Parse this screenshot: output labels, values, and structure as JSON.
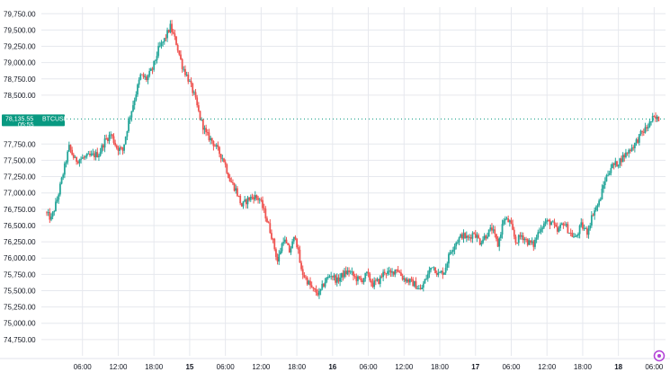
{
  "chart_data": {
    "type": "candlestick",
    "symbol": "BTCUSD",
    "last_price": "78,135.55",
    "countdown": "05:55",
    "colors": {
      "up": "#26a69a",
      "down": "#ef5350",
      "last_price": "#089981",
      "grid": "#e6e8ee"
    },
    "ylim": [
      74500,
      79850
    ],
    "y_ticks": [
      "79,750.00",
      "79,500.00",
      "79,250.00",
      "79,000.00",
      "78,750.00",
      "78,500.00",
      "77,750.00",
      "77,500.00",
      "77,250.00",
      "77,000.00",
      "76,750.00",
      "76,500.00",
      "76,250.00",
      "76,000.00",
      "75,750.00",
      "75,500.00",
      "75,250.00",
      "75,000.00",
      "74,750.00"
    ],
    "x_ticks": [
      {
        "label": "06:00",
        "bold": false
      },
      {
        "label": "12:00",
        "bold": false
      },
      {
        "label": "18:00",
        "bold": false
      },
      {
        "label": "15",
        "bold": true
      },
      {
        "label": "06:00",
        "bold": false
      },
      {
        "label": "12:00",
        "bold": false
      },
      {
        "label": "18:00",
        "bold": false
      },
      {
        "label": "16",
        "bold": true
      },
      {
        "label": "06:00",
        "bold": false
      },
      {
        "label": "12:00",
        "bold": false
      },
      {
        "label": "18:00",
        "bold": false
      },
      {
        "label": "17",
        "bold": true
      },
      {
        "label": "06:00",
        "bold": false
      },
      {
        "label": "12:00",
        "bold": false
      },
      {
        "label": "18:00",
        "bold": false
      },
      {
        "label": "18",
        "bold": true
      },
      {
        "label": "06:00",
        "bold": false
      }
    ],
    "x_start_hour": 0,
    "x_end_hour": 103,
    "price_path": [
      [
        0,
        76700
      ],
      [
        1,
        76600
      ],
      [
        2,
        76900
      ],
      [
        3,
        77300
      ],
      [
        4,
        77700
      ],
      [
        5,
        77500
      ],
      [
        7,
        77550
      ],
      [
        9,
        77600
      ],
      [
        10,
        77800
      ],
      [
        11,
        77900
      ],
      [
        12,
        77700
      ],
      [
        13,
        77650
      ],
      [
        14,
        78100
      ],
      [
        15,
        78450
      ],
      [
        16,
        78800
      ],
      [
        17,
        78750
      ],
      [
        18,
        78900
      ],
      [
        19,
        79200
      ],
      [
        20,
        79350
      ],
      [
        21,
        79550
      ],
      [
        22,
        79300
      ],
      [
        23,
        78950
      ],
      [
        24,
        78750
      ],
      [
        25,
        78500
      ],
      [
        26,
        78150
      ],
      [
        27,
        77900
      ],
      [
        28,
        77800
      ],
      [
        29,
        77650
      ],
      [
        30,
        77500
      ],
      [
        31,
        77200
      ],
      [
        32,
        77050
      ],
      [
        33,
        76800
      ],
      [
        34,
        76900
      ],
      [
        35,
        76950
      ],
      [
        36,
        76900
      ],
      [
        37,
        76650
      ],
      [
        38,
        76350
      ],
      [
        39,
        75950
      ],
      [
        40,
        76300
      ],
      [
        41,
        76100
      ],
      [
        42,
        76350
      ],
      [
        43,
        75800
      ],
      [
        44,
        75650
      ],
      [
        45,
        75500
      ],
      [
        46,
        75450
      ],
      [
        47,
        75650
      ],
      [
        48,
        75750
      ],
      [
        49,
        75650
      ],
      [
        50,
        75750
      ],
      [
        51,
        75800
      ],
      [
        52,
        75700
      ],
      [
        53,
        75650
      ],
      [
        54,
        75750
      ],
      [
        55,
        75600
      ],
      [
        56,
        75650
      ],
      [
        57,
        75800
      ],
      [
        58,
        75750
      ],
      [
        59,
        75850
      ],
      [
        60,
        75700
      ],
      [
        61,
        75650
      ],
      [
        62,
        75600
      ],
      [
        63,
        75500
      ],
      [
        64,
        75700
      ],
      [
        65,
        75900
      ],
      [
        66,
        75750
      ],
      [
        67,
        75800
      ],
      [
        68,
        76100
      ],
      [
        69,
        76250
      ],
      [
        70,
        76350
      ],
      [
        71,
        76300
      ],
      [
        72,
        76400
      ],
      [
        73,
        76250
      ],
      [
        74,
        76350
      ],
      [
        75,
        76450
      ],
      [
        76,
        76200
      ],
      [
        77,
        76600
      ],
      [
        78,
        76550
      ],
      [
        79,
        76250
      ],
      [
        80,
        76350
      ],
      [
        81,
        76250
      ],
      [
        82,
        76200
      ],
      [
        83,
        76450
      ],
      [
        84,
        76550
      ],
      [
        85,
        76550
      ],
      [
        86,
        76400
      ],
      [
        87,
        76550
      ],
      [
        88,
        76400
      ],
      [
        89,
        76300
      ],
      [
        90,
        76500
      ],
      [
        91,
        76400
      ],
      [
        92,
        76700
      ],
      [
        93,
        76850
      ],
      [
        94,
        77200
      ],
      [
        95,
        77400
      ],
      [
        96,
        77450
      ],
      [
        97,
        77550
      ],
      [
        98,
        77650
      ],
      [
        99,
        77750
      ],
      [
        100,
        77900
      ],
      [
        101,
        78000
      ],
      [
        102,
        78135
      ]
    ]
  }
}
